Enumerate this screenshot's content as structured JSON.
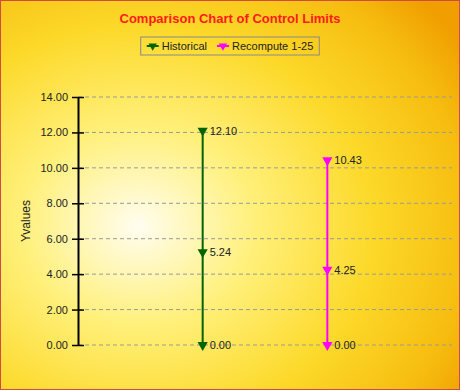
{
  "chart_data": {
    "type": "line",
    "title": "Comparison Chart of Control Limits",
    "y_label": "Yvalues",
    "series": [
      {
        "name": "Historical",
        "color": "#006400",
        "values": [
          12.1,
          5.24,
          0
        ],
        "value_labels": [
          "12.10",
          "5.24",
          "0.00"
        ]
      },
      {
        "name": "Recompute 1-25",
        "color": "#ff00ff",
        "values": [
          10.43,
          4.25,
          0
        ],
        "value_labels": [
          "10.43",
          "4.25",
          "0.00"
        ]
      }
    ],
    "ylim": [
      0,
      14
    ],
    "yticks": [
      {
        "value": 0,
        "label": "0.00"
      },
      {
        "value": 2,
        "label": "2.00"
      },
      {
        "value": 4,
        "label": "4.00"
      },
      {
        "value": 6,
        "label": "6.00"
      },
      {
        "value": 8,
        "label": "8.00"
      },
      {
        "value": 10,
        "label": "10.00"
      },
      {
        "value": 12,
        "label": "12.00"
      },
      {
        "value": 14,
        "label": "14.00"
      }
    ],
    "grid": true,
    "legend": "top",
    "data_labels": true,
    "tick_labels": "y",
    "marker": "triangle-down"
  }
}
